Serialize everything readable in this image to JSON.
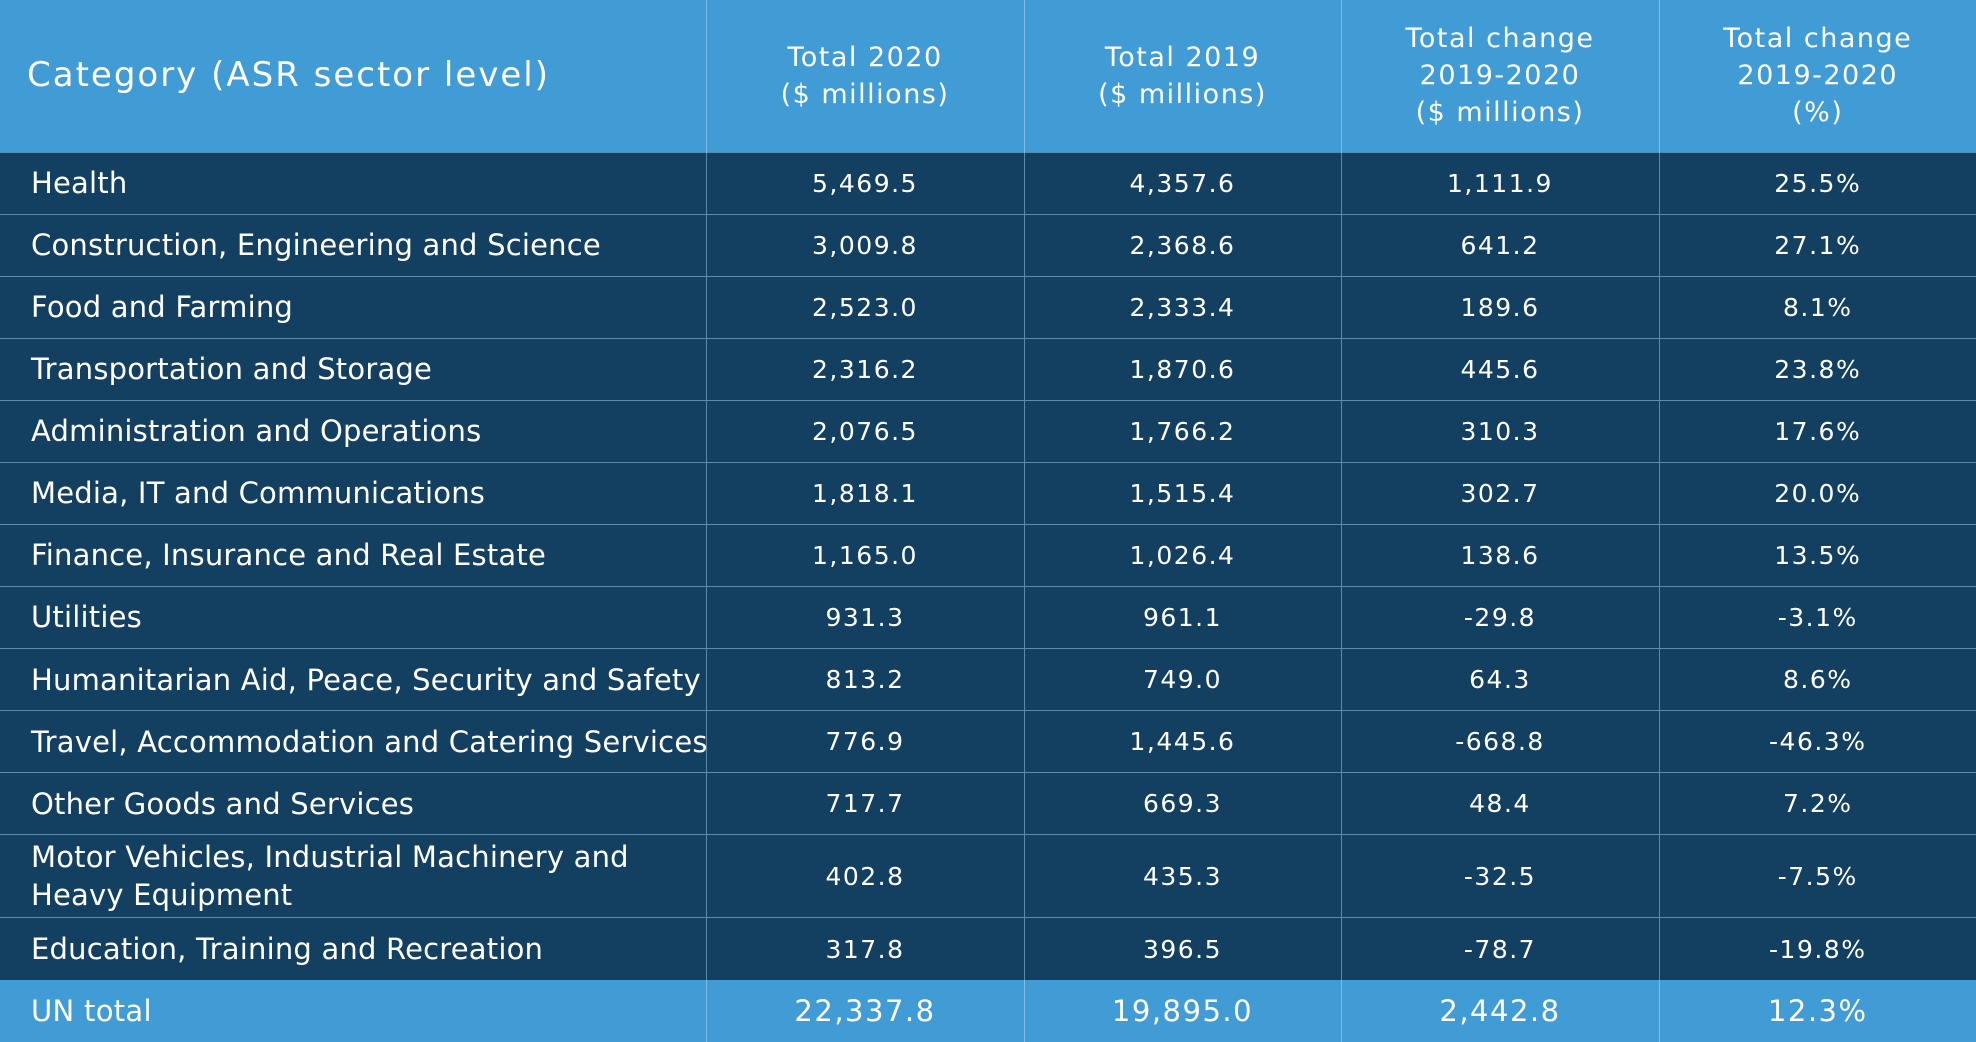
{
  "colors": {
    "header_bg": "#419bd5",
    "body_bg": "#133f60",
    "footer_bg": "#419bd5",
    "text": "#ffffff"
  },
  "table": {
    "headers": [
      {
        "lines": [
          "Category (ASR sector level)"
        ]
      },
      {
        "lines": [
          "Total 2020",
          "($ millions)"
        ]
      },
      {
        "lines": [
          "Total 2019",
          "($ millions)"
        ]
      },
      {
        "lines": [
          "Total change",
          "2019-2020",
          "($ millions)"
        ]
      },
      {
        "lines": [
          "Total change",
          "2019-2020",
          "(%)"
        ]
      }
    ],
    "rows": [
      {
        "category": "Health",
        "total_2020": "5,469.5",
        "total_2019": "4,357.6",
        "change_abs": "1,111.9",
        "change_pct": "25.5%"
      },
      {
        "category": "Construction, Engineering and Science",
        "total_2020": "3,009.8",
        "total_2019": "2,368.6",
        "change_abs": "641.2",
        "change_pct": "27.1%"
      },
      {
        "category": "Food and Farming",
        "total_2020": "2,523.0",
        "total_2019": "2,333.4",
        "change_abs": "189.6",
        "change_pct": "8.1%"
      },
      {
        "category": "Transportation and Storage",
        "total_2020": "2,316.2",
        "total_2019": "1,870.6",
        "change_abs": "445.6",
        "change_pct": "23.8%"
      },
      {
        "category": "Administration and Operations",
        "total_2020": "2,076.5",
        "total_2019": "1,766.2",
        "change_abs": "310.3",
        "change_pct": "17.6%"
      },
      {
        "category": "Media, IT and Communications",
        "total_2020": "1,818.1",
        "total_2019": "1,515.4",
        "change_abs": "302.7",
        "change_pct": "20.0%"
      },
      {
        "category": "Finance, Insurance and Real Estate",
        "total_2020": "1,165.0",
        "total_2019": "1,026.4",
        "change_abs": "138.6",
        "change_pct": "13.5%"
      },
      {
        "category": "Utilities",
        "total_2020": "931.3",
        "total_2019": "961.1",
        "change_abs": "-29.8",
        "change_pct": "-3.1%"
      },
      {
        "category": "Humanitarian Aid, Peace, Security and Safety",
        "total_2020": "813.2",
        "total_2019": "749.0",
        "change_abs": "64.3",
        "change_pct": "8.6%"
      },
      {
        "category": "Travel, Accommodation and Catering Services",
        "total_2020": "776.9",
        "total_2019": "1,445.6",
        "change_abs": "-668.8",
        "change_pct": "-46.3%"
      },
      {
        "category": "Other Goods and Services",
        "total_2020": "717.7",
        "total_2019": "669.3",
        "change_abs": "48.4",
        "change_pct": "7.2%"
      },
      {
        "category": "Motor Vehicles, Industrial Machinery and Heavy Equipment",
        "total_2020": "402.8",
        "total_2019": "435.3",
        "change_abs": "-32.5",
        "change_pct": "-7.5%"
      },
      {
        "category": "Education, Training and Recreation",
        "total_2020": "317.8",
        "total_2019": "396.5",
        "change_abs": "-78.7",
        "change_pct": "-19.8%"
      }
    ],
    "total": {
      "category": "UN total",
      "total_2020": "22,337.8",
      "total_2019": "19,895.0",
      "change_abs": "2,442.8",
      "change_pct": "12.3%"
    }
  }
}
